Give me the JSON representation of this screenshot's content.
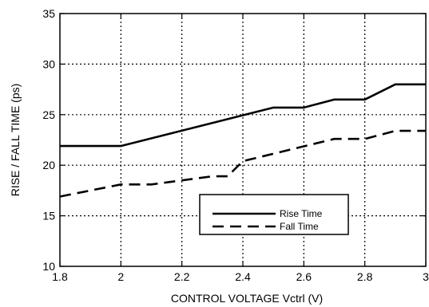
{
  "chart_data": {
    "type": "line",
    "title": "",
    "xlabel": "CONTROL VOLTAGE Vctrl (V)",
    "ylabel": "RISE / FALL TIME (ps)",
    "xlim": [
      1.8,
      3.0
    ],
    "ylim": [
      10,
      35
    ],
    "xticks": [
      1.8,
      2.0,
      2.2,
      2.4,
      2.6,
      2.8,
      3.0
    ],
    "xtick_labels": [
      "1.8",
      "2",
      "2.2",
      "2.4",
      "2.6",
      "2.8",
      "3"
    ],
    "yticks": [
      10,
      15,
      20,
      25,
      30,
      35
    ],
    "ytick_labels": [
      "10",
      "15",
      "20",
      "25",
      "30",
      "35"
    ],
    "grid": true,
    "grid_style": "dotted",
    "legend_position": "bottom-right",
    "series": [
      {
        "name": "Rise Time",
        "style": "solid",
        "color": "#000000",
        "x": [
          1.8,
          2.0,
          2.5,
          2.6,
          2.7,
          2.8,
          2.9,
          3.0
        ],
        "y": [
          21.9,
          21.9,
          25.7,
          25.7,
          26.5,
          26.5,
          28.0,
          28.0
        ]
      },
      {
        "name": "Fall Time",
        "style": "dashed",
        "color": "#000000",
        "x": [
          1.8,
          2.0,
          2.1,
          2.3,
          2.35,
          2.4,
          2.7,
          2.8,
          2.9,
          3.0
        ],
        "y": [
          16.9,
          18.1,
          18.1,
          18.9,
          18.9,
          20.4,
          22.6,
          22.6,
          23.4,
          23.4
        ]
      }
    ]
  }
}
